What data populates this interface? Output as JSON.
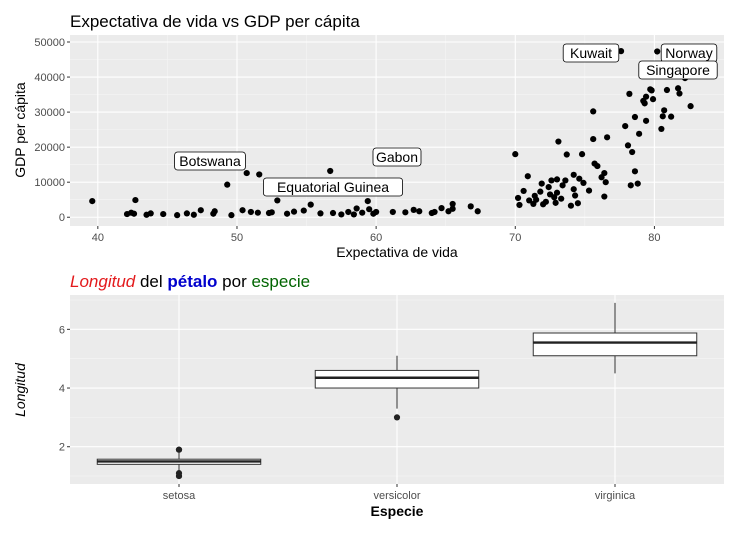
{
  "chart_data": [
    {
      "type": "scatter",
      "title": "Expectativa de vida vs GDP per cápita",
      "xlabel": "Expectativa de vida",
      "ylabel": "GDP per cápita",
      "xlim": [
        38,
        85
      ],
      "ylim": [
        -2500,
        52000
      ],
      "x_ticks": [
        40,
        50,
        60,
        70,
        80
      ],
      "y_ticks": [
        0,
        10000,
        20000,
        30000,
        40000,
        50000
      ],
      "grid": true,
      "colors": {
        "panel": "#ebebeb",
        "grid": "#ffffff",
        "point": "#000000",
        "label_fill": "#ffffff"
      },
      "points": [
        [
          39.6,
          4600
        ],
        [
          42.1,
          900
        ],
        [
          42.4,
          1300
        ],
        [
          42.6,
          1000
        ],
        [
          42.7,
          4900
        ],
        [
          43.5,
          700
        ],
        [
          43.8,
          1100
        ],
        [
          44.7,
          900
        ],
        [
          45.7,
          600
        ],
        [
          46.4,
          1100
        ],
        [
          46.9,
          700
        ],
        [
          47.4,
          2000
        ],
        [
          48.3,
          1000
        ],
        [
          48.4,
          1700
        ],
        [
          49.3,
          9300
        ],
        [
          49.6,
          600
        ],
        [
          50.4,
          2000
        ],
        [
          50.7,
          12600
        ],
        [
          51.0,
          1500
        ],
        [
          51.5,
          1300
        ],
        [
          51.6,
          12200
        ],
        [
          52.3,
          1200
        ],
        [
          52.5,
          1400
        ],
        [
          52.9,
          4800
        ],
        [
          53.6,
          1000
        ],
        [
          54.1,
          1600
        ],
        [
          54.8,
          1900
        ],
        [
          55.3,
          3600
        ],
        [
          56.0,
          1100
        ],
        [
          56.7,
          13200
        ],
        [
          56.9,
          1200
        ],
        [
          57.5,
          800
        ],
        [
          58.0,
          1500
        ],
        [
          58.4,
          800
        ],
        [
          58.6,
          2500
        ],
        [
          59.0,
          1300
        ],
        [
          59.4,
          4600
        ],
        [
          59.5,
          2300
        ],
        [
          59.8,
          1000
        ],
        [
          60.0,
          1500
        ],
        [
          61.2,
          1500
        ],
        [
          62.1,
          1400
        ],
        [
          62.7,
          2100
        ],
        [
          63.1,
          1700
        ],
        [
          64.0,
          1200
        ],
        [
          64.2,
          1500
        ],
        [
          64.7,
          2600
        ],
        [
          65.2,
          1700
        ],
        [
          65.5,
          3800
        ],
        [
          65.5,
          2400
        ],
        [
          66.8,
          3100
        ],
        [
          67.3,
          1700
        ],
        [
          70.0,
          18000
        ],
        [
          70.2,
          5500
        ],
        [
          70.3,
          3500
        ],
        [
          70.6,
          7500
        ],
        [
          70.9,
          11700
        ],
        [
          71.0,
          4800
        ],
        [
          71.3,
          3800
        ],
        [
          71.4,
          6100
        ],
        [
          71.5,
          5000
        ],
        [
          71.8,
          7300
        ],
        [
          71.9,
          9600
        ],
        [
          72.0,
          3700
        ],
        [
          72.2,
          4400
        ],
        [
          72.4,
          8600
        ],
        [
          72.5,
          6500
        ],
        [
          72.6,
          10500
        ],
        [
          72.8,
          5700
        ],
        [
          72.9,
          4100
        ],
        [
          73.0,
          7000
        ],
        [
          73.0,
          10800
        ],
        [
          73.1,
          21600
        ],
        [
          73.3,
          5300
        ],
        [
          73.4,
          9100
        ],
        [
          73.6,
          10500
        ],
        [
          73.7,
          17900
        ],
        [
          74.0,
          3300
        ],
        [
          74.2,
          8000
        ],
        [
          74.2,
          12100
        ],
        [
          74.3,
          6200
        ],
        [
          74.5,
          4000
        ],
        [
          74.6,
          11000
        ],
        [
          74.9,
          9800
        ],
        [
          74.8,
          18000
        ],
        [
          75.3,
          7600
        ],
        [
          75.6,
          30200
        ],
        [
          75.7,
          15300
        ],
        [
          75.6,
          22300
        ],
        [
          75.9,
          14600
        ],
        [
          76.2,
          11400
        ],
        [
          76.4,
          12600
        ],
        [
          76.4,
          5900
        ],
        [
          76.5,
          10000
        ],
        [
          76.6,
          22800
        ],
        [
          77.6,
          47400
        ],
        [
          77.9,
          26000
        ],
        [
          78.1,
          20500
        ],
        [
          78.2,
          35200
        ],
        [
          78.3,
          9100
        ],
        [
          78.4,
          18600
        ],
        [
          78.6,
          28600
        ],
        [
          78.6,
          13100
        ],
        [
          78.8,
          9600
        ],
        [
          78.9,
          23800
        ],
        [
          79.2,
          33200
        ],
        [
          79.3,
          32500
        ],
        [
          79.4,
          27500
        ],
        [
          79.4,
          34400
        ],
        [
          79.7,
          36500
        ],
        [
          79.8,
          36200
        ],
        [
          79.9,
          33700
        ],
        [
          80.2,
          47300
        ],
        [
          80.5,
          25200
        ],
        [
          80.6,
          28800
        ],
        [
          80.7,
          30500
        ],
        [
          80.9,
          36300
        ],
        [
          81.2,
          28700
        ],
        [
          81.7,
          36800
        ],
        [
          81.8,
          35300
        ],
        [
          82.2,
          39700
        ],
        [
          82.6,
          31700
        ]
      ],
      "annotations": [
        {
          "label": "Kuwait",
          "x": 77.6,
          "y": 47400
        },
        {
          "label": "Norway",
          "x": 80.2,
          "y": 49400
        },
        {
          "label": "Singapore",
          "x": 80.0,
          "y": 43000
        },
        {
          "label": "Botswana",
          "x": 46.6,
          "y": 16000
        },
        {
          "label": "Gabon",
          "x": 60.5,
          "y": 17000
        },
        {
          "label": "Equatorial Guinea",
          "x": 57.0,
          "y": 8400
        }
      ]
    },
    {
      "type": "box",
      "title": {
        "parts": [
          {
            "text": "Longitud",
            "color": "#e31a1c",
            "italic": true,
            "bold": false
          },
          {
            "text": " del ",
            "color": "#000000",
            "italic": false,
            "bold": false
          },
          {
            "text": "pétalo",
            "color": "#0000cd",
            "italic": false,
            "bold": true
          },
          {
            "text": " por ",
            "color": "#000000",
            "italic": false,
            "bold": false
          },
          {
            "text": "especie",
            "color": "#006400",
            "italic": false,
            "bold": false
          }
        ]
      },
      "xlabel": "Especie",
      "ylabel": "Longitud",
      "ylim": [
        0.73,
        7.17
      ],
      "y_ticks": [
        2,
        4,
        6
      ],
      "categories": [
        "setosa",
        "versicolor",
        "virginica"
      ],
      "boxes": [
        {
          "category": "setosa",
          "min": 1.0,
          "q1": 1.4,
          "median": 1.5,
          "q3": 1.575,
          "max": 1.8,
          "outliers": [
            1.0,
            1.1,
            1.9,
            1.9
          ]
        },
        {
          "category": "versicolor",
          "min": 3.3,
          "q1": 4.0,
          "median": 4.35,
          "q3": 4.6,
          "max": 5.1,
          "outliers": [
            3.0
          ]
        },
        {
          "category": "virginica",
          "min": 4.5,
          "q1": 5.1,
          "median": 5.55,
          "q3": 5.875,
          "max": 6.9,
          "outliers": []
        }
      ],
      "grid": true,
      "colors": {
        "panel": "#ebebeb",
        "grid": "#ffffff",
        "box_fill": "#ffffff",
        "box_line": "#333333"
      }
    }
  ]
}
